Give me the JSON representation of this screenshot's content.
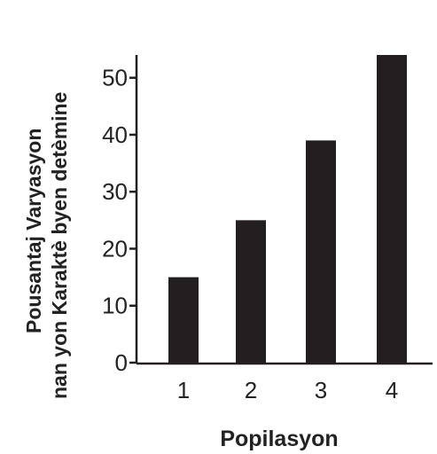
{
  "chart_data": {
    "type": "bar",
    "categories": [
      "1",
      "2",
      "3",
      "4"
    ],
    "values": [
      15,
      25,
      39,
      54
    ],
    "ylim": [
      0,
      54
    ],
    "yticks": [
      0,
      10,
      20,
      30,
      40,
      50
    ],
    "xlabel": "Popilasyon",
    "ylabel_lines": [
      "Pousantaj Varyasyon",
      "nan yon Karaktè byen detèmine"
    ],
    "bar_color": "#231f20",
    "axis_color": "#231f20",
    "grid": false,
    "legend": "none"
  }
}
